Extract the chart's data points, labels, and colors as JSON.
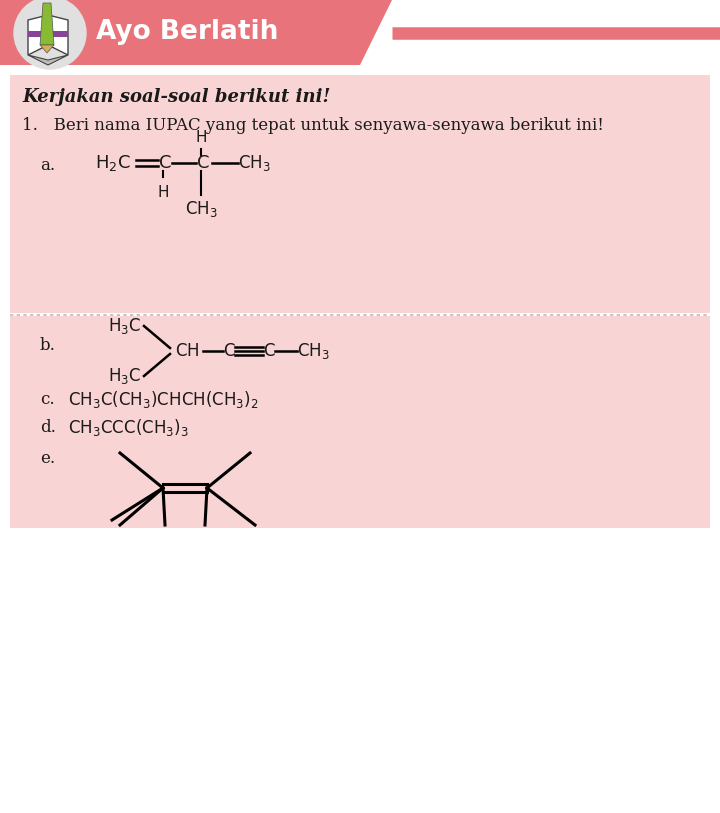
{
  "bg_color": "#FFFFFF",
  "header_bg": "#E8737A",
  "header_text": "Ayo Berlatih",
  "header_text_color": "#FFFFFF",
  "section1_bg": "#F9D4D4",
  "section2_bg": "#F9D4D4",
  "text_color": "#1a1a1a",
  "title_instruction": "Kerjakan soal-soal berikut ini!",
  "question1": "1.   Beri nama IUPAC yang tepat untuk senyawa-senyawa berikut ini!"
}
